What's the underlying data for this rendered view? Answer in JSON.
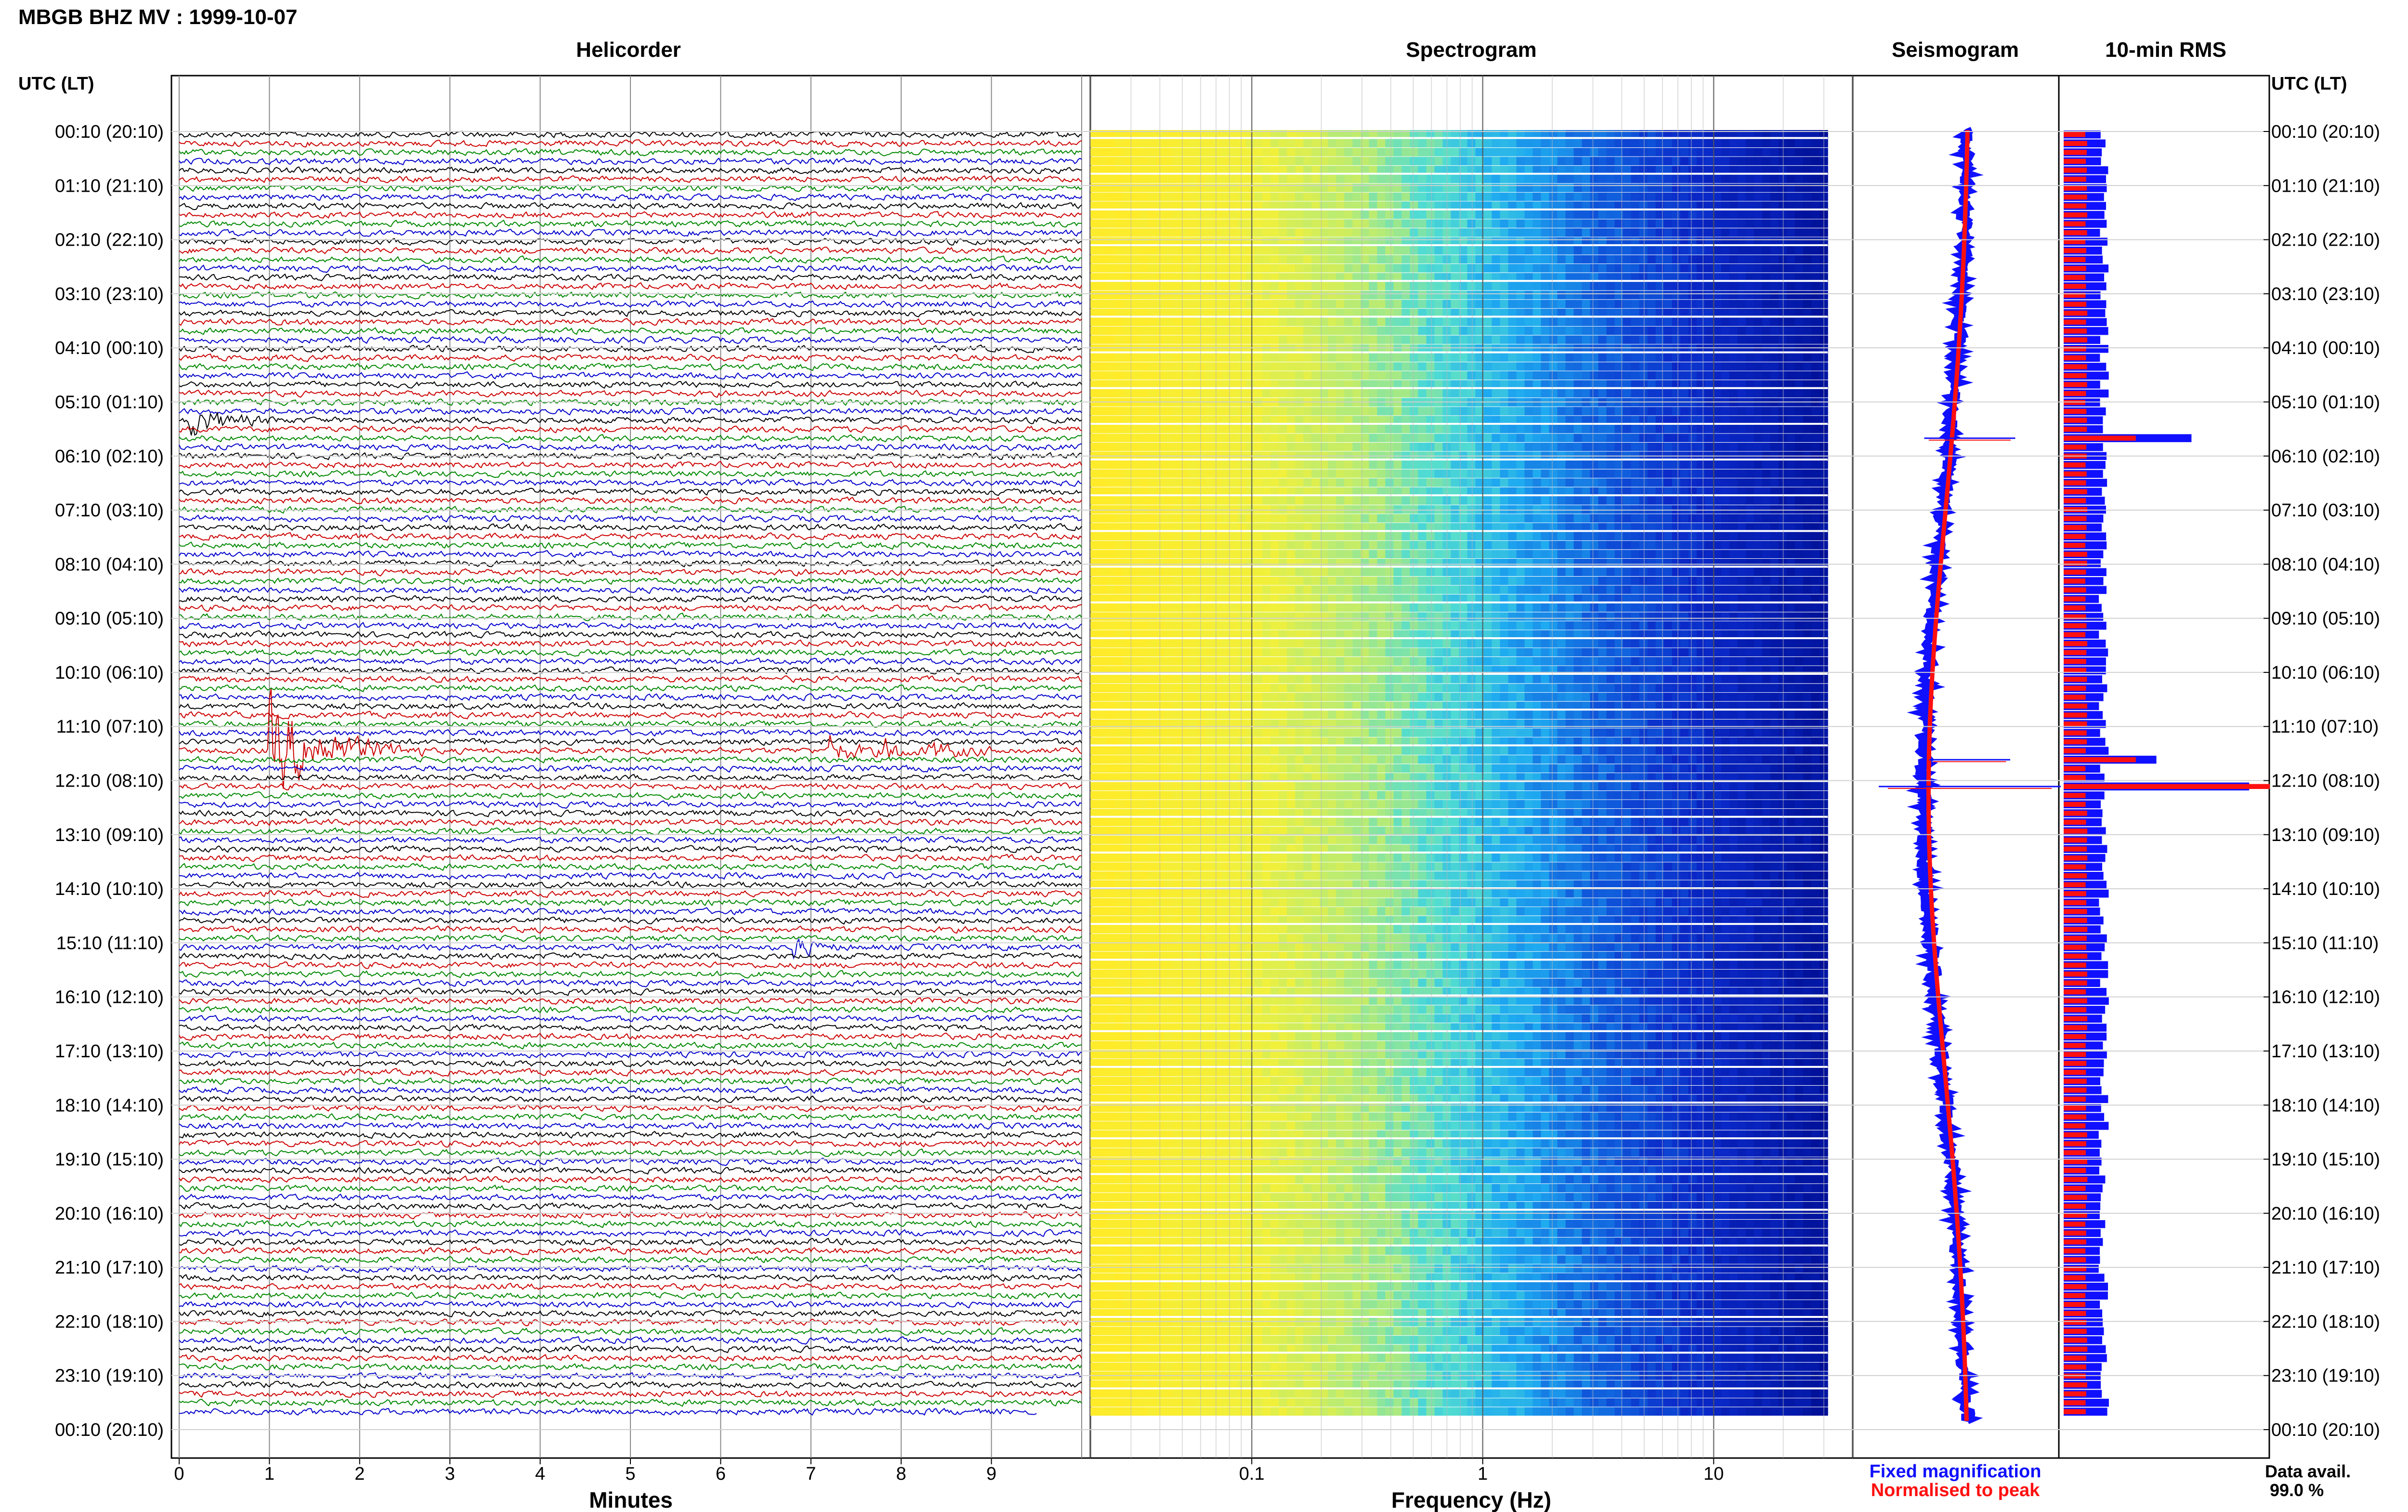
{
  "header": {
    "title": "MBGB BHZ MV : 1999-10-07"
  },
  "panels": {
    "helicorder": "Helicorder",
    "spectrogram": "Spectrogram",
    "seismogram": "Seismogram",
    "rms": "10-min RMS"
  },
  "axes": {
    "left_time_label": "UTC (LT)",
    "right_time_label": "UTC (LT)",
    "helicorder_xlabel": "Minutes",
    "spectrogram_xlabel": "Frequency (Hz)"
  },
  "legend": {
    "fixed": "Fixed magnification",
    "normalised": "Normalised to peak",
    "fixed_color": "#1010ff",
    "normalised_color": "#ff1010"
  },
  "data_availability": {
    "label": "Data avail.",
    "value": "99.0 %"
  },
  "chart_data": {
    "type": "helicorder",
    "station": "MBGB BHZ MV",
    "date": "1999-10-07",
    "time_ticks": [
      "00:10 (20:10)",
      "01:10 (21:10)",
      "02:10 (22:10)",
      "03:10 (23:10)",
      "04:10 (00:10)",
      "05:10 (01:10)",
      "06:10 (02:10)",
      "07:10 (03:10)",
      "08:10 (04:10)",
      "09:10 (05:10)",
      "10:10 (06:10)",
      "11:10 (07:10)",
      "12:10 (08:10)",
      "13:10 (09:10)",
      "14:10 (10:10)",
      "15:10 (11:10)",
      "16:10 (12:10)",
      "17:10 (13:10)",
      "18:10 (14:10)",
      "19:10 (15:10)",
      "20:10 (16:10)",
      "21:10 (17:10)",
      "22:10 (18:10)",
      "23:10 (19:10)",
      "00:10 (20:10)"
    ],
    "trace_colors": [
      "#000000",
      "#cc0000",
      "#008800",
      "#0000cc"
    ],
    "helicorder": {
      "minutes_ticks": [
        "0",
        "1",
        "2",
        "3",
        "4",
        "5",
        "6",
        "7",
        "8",
        "9"
      ],
      "xlim": [
        0,
        10
      ],
      "rows": 144,
      "events": [
        {
          "row": 32,
          "minute": 0.1,
          "duration": 0.5,
          "amplitude": 1.8
        },
        {
          "row": 69,
          "minute": 1.0,
          "duration": 0.8,
          "amplitude": 6.0
        },
        {
          "row": 69,
          "minute": 7.2,
          "duration": 0.4,
          "amplitude": 1.5
        },
        {
          "row": 69,
          "minute": 7.8,
          "duration": 0.3,
          "amplitude": 1.2
        },
        {
          "row": 69,
          "minute": 8.3,
          "duration": 0.5,
          "amplitude": 1.0
        },
        {
          "row": 91,
          "minute": 6.8,
          "duration": 0.3,
          "amplitude": 1.2
        }
      ]
    },
    "spectrogram": {
      "x_scale": "log",
      "xlim": [
        0.02,
        40
      ],
      "ticks": [
        "0.1",
        "1",
        "10"
      ]
    },
    "seismogram": {
      "series": [
        {
          "name": "Fixed magnification",
          "color": "#1010ff"
        },
        {
          "name": "Normalised to peak",
          "color": "#ff1010"
        }
      ],
      "spikes": [
        {
          "row": 34,
          "amplitude": 0.45
        },
        {
          "row": 70,
          "amplitude": 0.4
        },
        {
          "row": 73,
          "amplitude": 0.9
        }
      ]
    },
    "rms": {
      "x_scale": "linear",
      "spikes": [
        {
          "row": 34,
          "red": 0.35,
          "blue": 0.62
        },
        {
          "row": 70,
          "red": 0.35,
          "blue": 0.45
        },
        {
          "row": 73,
          "red": 1.0,
          "blue": 0.9
        }
      ]
    }
  }
}
